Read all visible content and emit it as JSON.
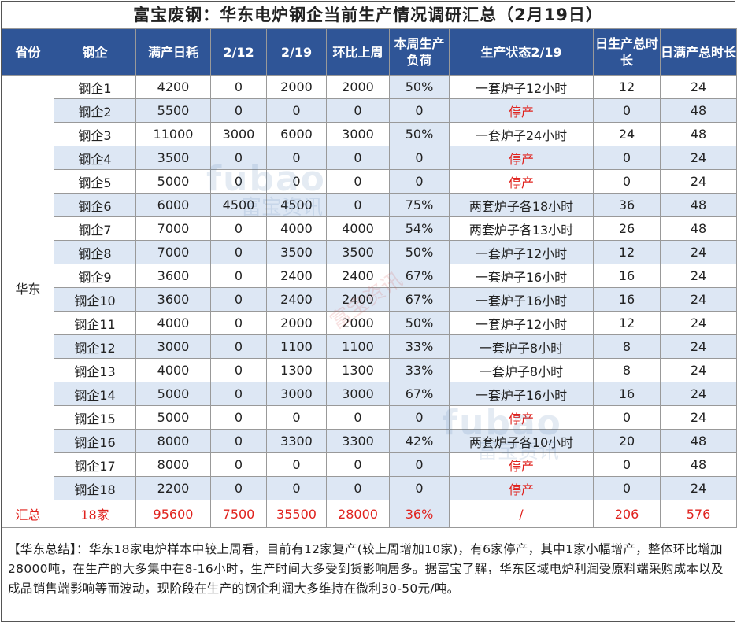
{
  "title": "富宝废钢：华东电炉钢企当前生产情况调研汇总（2月19日）",
  "headers": [
    "省份",
    "钢企",
    "满产日耗",
    "2/12",
    "2/19",
    "环比上周",
    "本周生产负荷",
    "生产状态2/19",
    "日生产总时长",
    "日满产总时长"
  ],
  "province": "华东",
  "rows": [
    {
      "name": "钢企1",
      "full": "4200",
      "w12": "0",
      "w19": "2000",
      "change": "2000",
      "load": "50%",
      "status": "一套炉子12小时",
      "hours": "12",
      "full_hours": "24"
    },
    {
      "name": "钢企2",
      "full": "5500",
      "w12": "0",
      "w19": "0",
      "change": "0",
      "load": "0",
      "status": "停产",
      "hours": "0",
      "full_hours": "48"
    },
    {
      "name": "钢企3",
      "full": "11000",
      "w12": "3000",
      "w19": "6000",
      "change": "3000",
      "load": "50%",
      "status": "一套炉子24小时",
      "hours": "24",
      "full_hours": "48"
    },
    {
      "name": "钢企4",
      "full": "3500",
      "w12": "0",
      "w19": "0",
      "change": "0",
      "load": "0",
      "status": "停产",
      "hours": "0",
      "full_hours": "24"
    },
    {
      "name": "钢企5",
      "full": "5000",
      "w12": "0",
      "w19": "0",
      "change": "0",
      "load": "0",
      "status": "停产",
      "hours": "0",
      "full_hours": "24"
    },
    {
      "name": "钢企6",
      "full": "6000",
      "w12": "4500",
      "w19": "4500",
      "change": "0",
      "load": "75%",
      "status": "两套炉子各18小时",
      "hours": "36",
      "full_hours": "48"
    },
    {
      "name": "钢企7",
      "full": "7000",
      "w12": "0",
      "w19": "4000",
      "change": "4000",
      "load": "54%",
      "status": "两套炉子各13小时",
      "hours": "26",
      "full_hours": "48"
    },
    {
      "name": "钢企8",
      "full": "7000",
      "w12": "0",
      "w19": "3500",
      "change": "3500",
      "load": "50%",
      "status": "一套炉子12小时",
      "hours": "12",
      "full_hours": "24"
    },
    {
      "name": "钢企9",
      "full": "3600",
      "w12": "0",
      "w19": "2400",
      "change": "2400",
      "load": "67%",
      "status": "一套炉子16小时",
      "hours": "16",
      "full_hours": "24"
    },
    {
      "name": "钢企10",
      "full": "3600",
      "w12": "0",
      "w19": "2400",
      "change": "2400",
      "load": "67%",
      "status": "一套炉子16小时",
      "hours": "16",
      "full_hours": "24"
    },
    {
      "name": "钢企11",
      "full": "4000",
      "w12": "0",
      "w19": "2000",
      "change": "2000",
      "load": "50%",
      "status": "一套炉子12小时",
      "hours": "12",
      "full_hours": "24"
    },
    {
      "name": "钢企12",
      "full": "3000",
      "w12": "0",
      "w19": "1100",
      "change": "1100",
      "load": "33%",
      "status": "一套炉子8小时",
      "hours": "8",
      "full_hours": "24"
    },
    {
      "name": "钢企13",
      "full": "4000",
      "w12": "0",
      "w19": "1300",
      "change": "1300",
      "load": "33%",
      "status": "一套炉子8小时",
      "hours": "8",
      "full_hours": "24"
    },
    {
      "name": "钢企14",
      "full": "5000",
      "w12": "0",
      "w19": "3000",
      "change": "3000",
      "load": "67%",
      "status": "一套炉子16小时",
      "hours": "16",
      "full_hours": "24"
    },
    {
      "name": "钢企15",
      "full": "5000",
      "w12": "0",
      "w19": "0",
      "change": "0",
      "load": "0",
      "status": "停产",
      "hours": "0",
      "full_hours": "24"
    },
    {
      "name": "钢企16",
      "full": "8000",
      "w12": "0",
      "w19": "3300",
      "change": "3300",
      "load": "42%",
      "status": "两套炉子各10小时",
      "hours": "20",
      "full_hours": "48"
    },
    {
      "name": "钢企17",
      "full": "8000",
      "w12": "0",
      "w19": "0",
      "change": "0",
      "load": "0",
      "status": "停产",
      "hours": "0",
      "full_hours": "48"
    },
    {
      "name": "钢企18",
      "full": "2200",
      "w12": "0",
      "w19": "0",
      "change": "0",
      "load": "0",
      "status": "停产",
      "hours": "0",
      "full_hours": "24"
    }
  ],
  "total": {
    "label": "汇总",
    "name": "18家",
    "full": "95600",
    "w12": "7500",
    "w19": "35500",
    "change": "28000",
    "load": "36%",
    "status": "/",
    "hours": "206",
    "full_hours": "576"
  },
  "summary": "【华东总结】：华东18家电炉样本中较上周看，目前有12家复产(较上周增加10家)，有6家停产，其中1家小幅增产，整体环比增加28000吨，在生产的大多集中在8-16小时，生产时间大多受到货影响居多。据富宝了解，华东区域电炉利润受原料端采购成本以及成品销售端影响等而波动，现阶段在生产的钢企利润大多维持在微利30-50元/吨。",
  "watermark": {
    "latin": "fubao",
    "chinese": "富宝资讯"
  },
  "colors": {
    "header_bg": "#2f5597",
    "stripe": "#dde7f4",
    "red": "#e0221d"
  }
}
